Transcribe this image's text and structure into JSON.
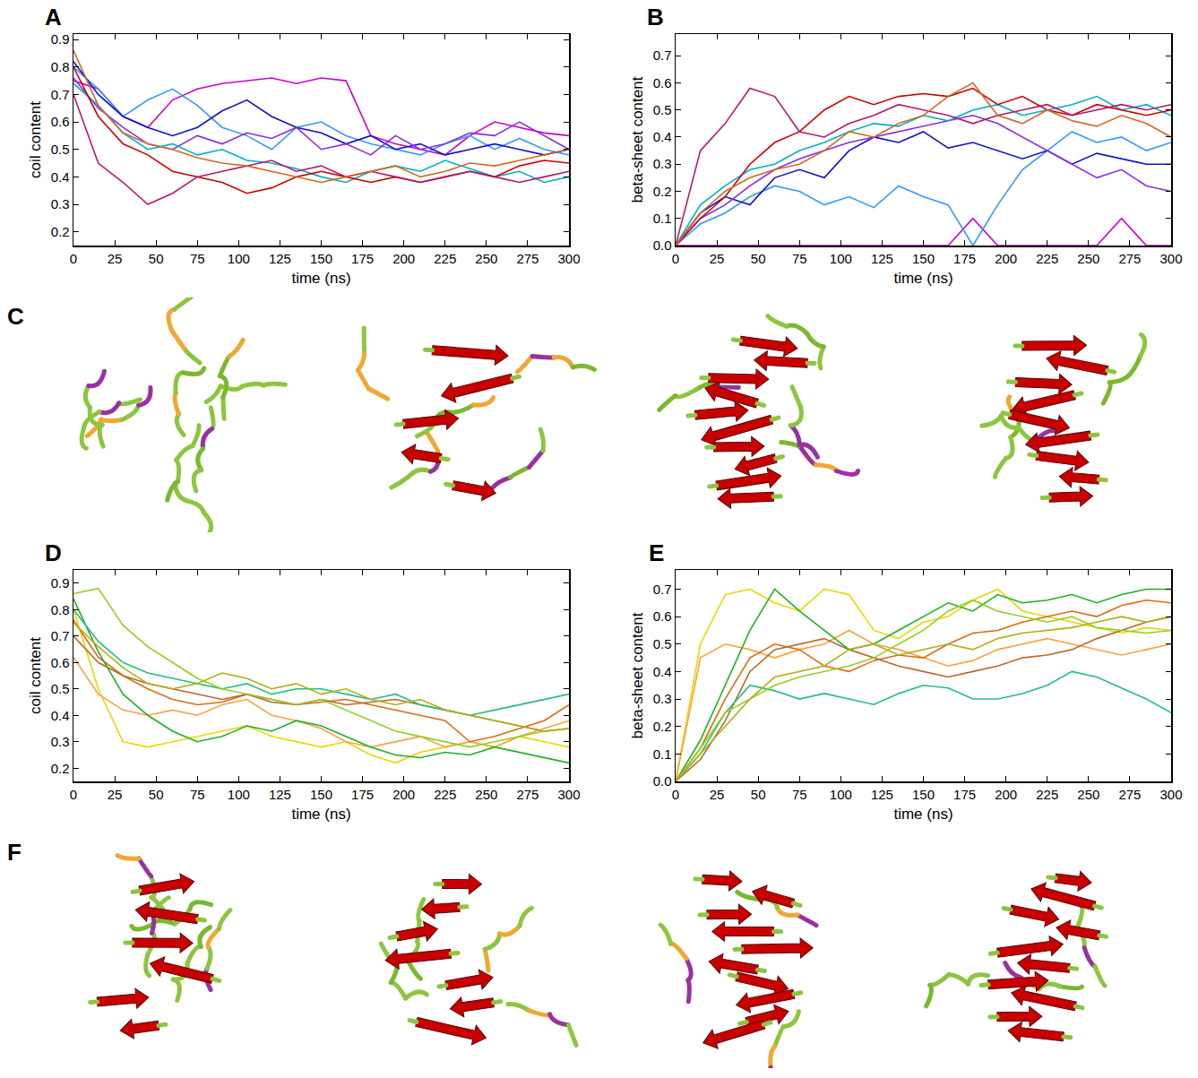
{
  "chart_data": [
    {
      "type": "line",
      "panel_label": "A",
      "x_title": "time (ns)",
      "y_title": "coil content",
      "x": [
        0,
        15,
        30,
        45,
        60,
        75,
        90,
        105,
        120,
        135,
        150,
        165,
        180,
        195,
        210,
        225,
        240,
        255,
        270,
        285,
        300
      ],
      "xlim": [
        0,
        300
      ],
      "xticks": [
        0,
        25,
        50,
        75,
        100,
        125,
        150,
        175,
        200,
        225,
        250,
        275,
        300
      ],
      "ylim": [
        0.15,
        0.92
      ],
      "yticks": [
        0.2,
        0.3,
        0.4,
        0.5,
        0.6,
        0.7,
        0.8,
        0.9
      ],
      "series": [
        {
          "color": "#cc00cc",
          "values": [
            0.75,
            0.72,
            0.62,
            0.58,
            0.68,
            0.72,
            0.74,
            0.75,
            0.76,
            0.74,
            0.76,
            0.75,
            0.55,
            0.52,
            0.5,
            0.48,
            0.55,
            0.6,
            0.58,
            0.56,
            0.55
          ]
        },
        {
          "color": "#3399ff",
          "values": [
            0.8,
            0.72,
            0.62,
            0.68,
            0.72,
            0.66,
            0.58,
            0.55,
            0.5,
            0.58,
            0.6,
            0.55,
            0.52,
            0.5,
            0.48,
            0.52,
            0.55,
            0.5,
            0.54,
            0.5,
            0.48
          ]
        },
        {
          "color": "#1010cc",
          "values": [
            0.82,
            0.7,
            0.62,
            0.58,
            0.55,
            0.58,
            0.64,
            0.68,
            0.62,
            0.58,
            0.56,
            0.52,
            0.55,
            0.5,
            0.52,
            0.48,
            0.5,
            0.52,
            0.5,
            0.48,
            0.5
          ]
        },
        {
          "color": "#8a2be2",
          "values": [
            0.76,
            0.65,
            0.58,
            0.52,
            0.5,
            0.55,
            0.52,
            0.56,
            0.54,
            0.58,
            0.5,
            0.52,
            0.48,
            0.55,
            0.5,
            0.52,
            0.56,
            0.55,
            0.6,
            0.55,
            0.5
          ]
        },
        {
          "color": "#00b0c8",
          "values": [
            0.74,
            0.66,
            0.56,
            0.5,
            0.52,
            0.48,
            0.5,
            0.46,
            0.45,
            0.43,
            0.4,
            0.38,
            0.42,
            0.44,
            0.42,
            0.46,
            0.43,
            0.4,
            0.42,
            0.38,
            0.4
          ]
        },
        {
          "color": "#d00000",
          "values": [
            0.8,
            0.62,
            0.52,
            0.48,
            0.42,
            0.4,
            0.38,
            0.34,
            0.36,
            0.4,
            0.42,
            0.4,
            0.38,
            0.4,
            0.38,
            0.4,
            0.42,
            0.4,
            0.44,
            0.46,
            0.45
          ]
        },
        {
          "color": "#b3186e",
          "values": [
            0.7,
            0.45,
            0.38,
            0.3,
            0.34,
            0.4,
            0.42,
            0.44,
            0.46,
            0.42,
            0.44,
            0.4,
            0.42,
            0.4,
            0.38,
            0.4,
            0.42,
            0.4,
            0.38,
            0.4,
            0.42
          ]
        },
        {
          "color": "#d2691e",
          "values": [
            0.86,
            0.66,
            0.56,
            0.52,
            0.5,
            0.47,
            0.45,
            0.44,
            0.42,
            0.4,
            0.38,
            0.4,
            0.42,
            0.44,
            0.4,
            0.42,
            0.45,
            0.44,
            0.46,
            0.48,
            0.5
          ]
        }
      ]
    },
    {
      "type": "line",
      "panel_label": "B",
      "x_title": "time (ns)",
      "y_title": "beta-sheet content",
      "x": [
        0,
        15,
        30,
        45,
        60,
        75,
        90,
        105,
        120,
        135,
        150,
        165,
        180,
        195,
        210,
        225,
        240,
        255,
        270,
        285,
        300
      ],
      "xlim": [
        0,
        300
      ],
      "xticks": [
        0,
        25,
        50,
        75,
        100,
        125,
        150,
        175,
        200,
        225,
        250,
        275,
        300
      ],
      "ylim": [
        0,
        0.78
      ],
      "yticks": [
        {
          "value": 0,
          "label": "0.0"
        },
        0.1,
        0.2,
        0.3,
        0.4,
        0.5,
        0.6,
        0.7
      ],
      "series": [
        {
          "color": "#cc00cc",
          "values": [
            0,
            0,
            0,
            0,
            0,
            0,
            0,
            0,
            0,
            0,
            0,
            0,
            0.1,
            0,
            0,
            0,
            0,
            0,
            0.1,
            0,
            0
          ]
        },
        {
          "color": "#3399ff",
          "values": [
            0,
            0.08,
            0.12,
            0.18,
            0.22,
            0.2,
            0.15,
            0.18,
            0.14,
            0.22,
            0.18,
            0.15,
            0.0,
            0.15,
            0.28,
            0.35,
            0.42,
            0.38,
            0.4,
            0.35,
            0.38
          ]
        },
        {
          "color": "#1010cc",
          "values": [
            0,
            0.12,
            0.18,
            0.15,
            0.25,
            0.28,
            0.25,
            0.35,
            0.4,
            0.38,
            0.42,
            0.36,
            0.38,
            0.35,
            0.32,
            0.35,
            0.3,
            0.34,
            0.32,
            0.3,
            0.3
          ]
        },
        {
          "color": "#8a2be2",
          "values": [
            0,
            0.1,
            0.15,
            0.22,
            0.28,
            0.32,
            0.35,
            0.38,
            0.4,
            0.42,
            0.44,
            0.46,
            0.48,
            0.45,
            0.4,
            0.35,
            0.3,
            0.25,
            0.28,
            0.22,
            0.2
          ]
        },
        {
          "color": "#00b0c8",
          "values": [
            0,
            0.15,
            0.22,
            0.28,
            0.3,
            0.35,
            0.38,
            0.42,
            0.45,
            0.44,
            0.48,
            0.46,
            0.5,
            0.52,
            0.48,
            0.5,
            0.52,
            0.55,
            0.5,
            0.52,
            0.48
          ]
        },
        {
          "color": "#d00000",
          "values": [
            0,
            0.1,
            0.18,
            0.3,
            0.38,
            0.42,
            0.5,
            0.55,
            0.52,
            0.55,
            0.56,
            0.55,
            0.58,
            0.52,
            0.55,
            0.5,
            0.48,
            0.52,
            0.5,
            0.48,
            0.5
          ]
        },
        {
          "color": "#b3186e",
          "values": [
            0,
            0.35,
            0.45,
            0.58,
            0.55,
            0.42,
            0.4,
            0.45,
            0.48,
            0.52,
            0.5,
            0.48,
            0.45,
            0.48,
            0.5,
            0.52,
            0.48,
            0.5,
            0.52,
            0.5,
            0.52
          ]
        },
        {
          "color": "#d2691e",
          "values": [
            0,
            0.12,
            0.2,
            0.25,
            0.28,
            0.3,
            0.35,
            0.42,
            0.4,
            0.45,
            0.48,
            0.55,
            0.6,
            0.48,
            0.45,
            0.5,
            0.46,
            0.44,
            0.48,
            0.45,
            0.4
          ]
        }
      ]
    },
    {
      "type": "line",
      "panel_label": "D",
      "x_title": "time (ns)",
      "y_title": "coil content",
      "x": [
        0,
        15,
        30,
        45,
        60,
        75,
        90,
        105,
        120,
        135,
        150,
        165,
        180,
        195,
        210,
        225,
        240,
        255,
        270,
        285,
        300
      ],
      "xlim": [
        0,
        300
      ],
      "xticks": [
        0,
        25,
        50,
        75,
        100,
        125,
        150,
        175,
        200,
        225,
        250,
        275,
        300
      ],
      "ylim": [
        0.15,
        0.95
      ],
      "yticks": [
        0.2,
        0.3,
        0.4,
        0.5,
        0.6,
        0.7,
        0.8,
        0.9
      ],
      "series": [
        {
          "color": "#e8d800",
          "values": [
            0.8,
            0.5,
            0.3,
            0.28,
            0.3,
            0.32,
            0.34,
            0.36,
            0.32,
            0.3,
            0.28,
            0.3,
            0.25,
            0.22,
            0.26,
            0.28,
            0.3,
            0.28,
            0.32,
            0.3,
            0.28
          ]
        },
        {
          "color": "#ffa040",
          "values": [
            0.62,
            0.48,
            0.42,
            0.4,
            0.42,
            0.4,
            0.44,
            0.46,
            0.4,
            0.38,
            0.35,
            0.3,
            0.28,
            0.3,
            0.32,
            0.28,
            0.3,
            0.28,
            0.32,
            0.35,
            0.38
          ]
        },
        {
          "color": "#e06a10",
          "values": [
            0.76,
            0.62,
            0.55,
            0.5,
            0.46,
            0.44,
            0.45,
            0.48,
            0.46,
            0.44,
            0.45,
            0.46,
            0.44,
            0.42,
            0.4,
            0.38,
            0.3,
            0.32,
            0.35,
            0.38,
            0.44
          ]
        },
        {
          "color": "#b86a2a",
          "values": [
            0.7,
            0.6,
            0.55,
            0.52,
            0.5,
            0.48,
            0.46,
            0.48,
            0.45,
            0.44,
            0.46,
            0.44,
            0.45,
            0.46,
            0.44,
            0.42,
            0.4,
            0.38,
            0.36,
            0.34,
            0.35
          ]
        },
        {
          "color": "#22b022",
          "values": [
            0.84,
            0.64,
            0.48,
            0.4,
            0.34,
            0.3,
            0.32,
            0.36,
            0.34,
            0.38,
            0.36,
            0.32,
            0.28,
            0.25,
            0.24,
            0.26,
            0.25,
            0.28,
            0.26,
            0.24,
            0.22
          ]
        },
        {
          "color": "#20c080",
          "values": [
            0.8,
            0.68,
            0.6,
            0.56,
            0.54,
            0.52,
            0.5,
            0.52,
            0.48,
            0.5,
            0.5,
            0.48,
            0.46,
            0.48,
            0.44,
            0.42,
            0.4,
            0.42,
            0.44,
            0.46,
            0.48
          ]
        },
        {
          "color": "#90d020",
          "values": [
            0.86,
            0.88,
            0.74,
            0.66,
            0.6,
            0.54,
            0.5,
            0.48,
            0.46,
            0.44,
            0.46,
            0.42,
            0.38,
            0.34,
            0.32,
            0.3,
            0.28,
            0.3,
            0.32,
            0.34,
            0.35
          ]
        },
        {
          "color": "#b0b010",
          "values": [
            0.75,
            0.66,
            0.58,
            0.52,
            0.5,
            0.52,
            0.56,
            0.54,
            0.5,
            0.52,
            0.48,
            0.5,
            0.46,
            0.44,
            0.46,
            0.42,
            0.4,
            0.38,
            0.36,
            0.34,
            0.35
          ]
        }
      ]
    },
    {
      "type": "line",
      "panel_label": "E",
      "x_title": "time (ns)",
      "y_title": "beta-sheet content",
      "x": [
        0,
        15,
        30,
        45,
        60,
        75,
        90,
        105,
        120,
        135,
        150,
        165,
        180,
        195,
        210,
        225,
        240,
        255,
        270,
        285,
        300
      ],
      "xlim": [
        0,
        300
      ],
      "xticks": [
        0,
        25,
        50,
        75,
        100,
        125,
        150,
        175,
        200,
        225,
        250,
        275,
        300
      ],
      "ylim": [
        0,
        0.77
      ],
      "yticks": [
        {
          "value": 0,
          "label": "0.0"
        },
        0.1,
        0.2,
        0.3,
        0.4,
        0.5,
        0.6,
        0.7
      ],
      "series": [
        {
          "color": "#e8d800",
          "values": [
            0,
            0.5,
            0.68,
            0.7,
            0.65,
            0.62,
            0.7,
            0.68,
            0.55,
            0.52,
            0.58,
            0.6,
            0.66,
            0.7,
            0.62,
            0.6,
            0.58,
            0.56,
            0.54,
            0.56,
            0.55
          ]
        },
        {
          "color": "#ffa040",
          "values": [
            0,
            0.45,
            0.5,
            0.48,
            0.45,
            0.48,
            0.5,
            0.55,
            0.5,
            0.48,
            0.45,
            0.42,
            0.44,
            0.48,
            0.5,
            0.52,
            0.5,
            0.48,
            0.46,
            0.48,
            0.5
          ]
        },
        {
          "color": "#e06a10",
          "values": [
            0,
            0.12,
            0.3,
            0.45,
            0.5,
            0.48,
            0.42,
            0.4,
            0.44,
            0.46,
            0.45,
            0.5,
            0.54,
            0.55,
            0.58,
            0.6,
            0.62,
            0.6,
            0.64,
            0.66,
            0.65
          ]
        },
        {
          "color": "#b86a2a",
          "values": [
            0,
            0.08,
            0.22,
            0.4,
            0.48,
            0.5,
            0.52,
            0.48,
            0.45,
            0.42,
            0.4,
            0.38,
            0.4,
            0.42,
            0.45,
            0.46,
            0.48,
            0.52,
            0.55,
            0.58,
            0.6
          ]
        },
        {
          "color": "#22b022",
          "values": [
            0,
            0.15,
            0.35,
            0.55,
            0.7,
            0.62,
            0.55,
            0.48,
            0.5,
            0.55,
            0.6,
            0.65,
            0.62,
            0.68,
            0.65,
            0.66,
            0.68,
            0.65,
            0.68,
            0.7,
            0.7
          ]
        },
        {
          "color": "#20c080",
          "values": [
            0,
            0.1,
            0.25,
            0.35,
            0.33,
            0.3,
            0.32,
            0.3,
            0.28,
            0.32,
            0.35,
            0.34,
            0.3,
            0.3,
            0.32,
            0.35,
            0.4,
            0.38,
            0.34,
            0.3,
            0.25
          ]
        },
        {
          "color": "#90d020",
          "values": [
            0,
            0.12,
            0.25,
            0.3,
            0.35,
            0.38,
            0.4,
            0.42,
            0.45,
            0.5,
            0.55,
            0.62,
            0.66,
            0.62,
            0.6,
            0.58,
            0.6,
            0.56,
            0.55,
            0.54,
            0.55
          ]
        },
        {
          "color": "#b0b010",
          "values": [
            0,
            0.1,
            0.2,
            0.3,
            0.38,
            0.4,
            0.42,
            0.48,
            0.5,
            0.46,
            0.48,
            0.5,
            0.48,
            0.52,
            0.54,
            0.55,
            0.56,
            0.58,
            0.6,
            0.58,
            0.6
          ]
        }
      ]
    }
  ],
  "snapshots": [
    {
      "panel_label": "C"
    },
    {
      "panel_label": "F"
    }
  ]
}
